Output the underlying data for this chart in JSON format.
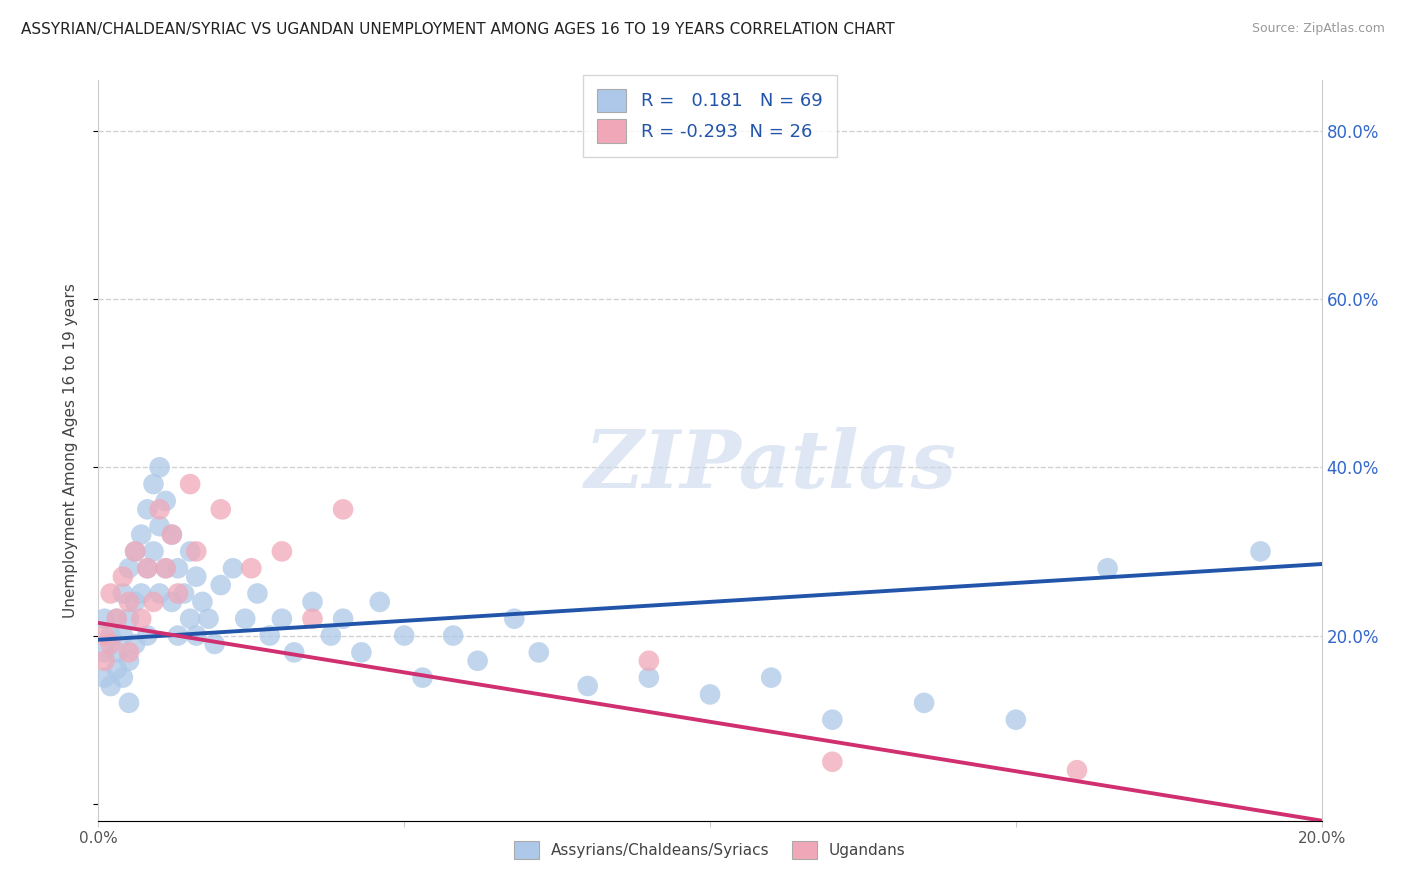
{
  "title": "ASSYRIAN/CHALDEAN/SYRIAC VS UGANDAN UNEMPLOYMENT AMONG AGES 16 TO 19 YEARS CORRELATION CHART",
  "source": "Source: ZipAtlas.com",
  "ylabel": "Unemployment Among Ages 16 to 19 years",
  "xlim": [
    0.0,
    0.2
  ],
  "ylim": [
    -0.02,
    0.86
  ],
  "xticks": [
    0.0,
    0.05,
    0.1,
    0.15,
    0.2
  ],
  "xtick_labels": [
    "0.0%",
    "",
    "",
    "",
    "20.0%"
  ],
  "ytick_positions": [
    0.0,
    0.2,
    0.4,
    0.6,
    0.8
  ],
  "legend_label_blue": "Assyrians/Chaldeans/Syriacs",
  "legend_label_pink": "Ugandans",
  "R_blue": 0.181,
  "N_blue": 69,
  "R_pink": -0.293,
  "N_pink": 26,
  "blue_color": "#adc8e8",
  "blue_line_color": "#2255aa",
  "pink_color": "#f0a8b8",
  "pink_line_color": "#d03070",
  "blue_trend_x0": 0.0,
  "blue_trend_y0": 0.195,
  "blue_trend_x1": 0.2,
  "blue_trend_y1": 0.285,
  "pink_trend_x0": 0.0,
  "pink_trend_y0": 0.215,
  "pink_trend_x1": 0.2,
  "pink_trend_y1": -0.02,
  "watermark": "ZIPatlas",
  "background_color": "#ffffff",
  "grid_color": "#cccccc",
  "right_ytick_color": "#3366cc",
  "blue_x": [
    0.001,
    0.001,
    0.001,
    0.002,
    0.002,
    0.003,
    0.003,
    0.003,
    0.004,
    0.004,
    0.004,
    0.005,
    0.005,
    0.005,
    0.005,
    0.006,
    0.006,
    0.006,
    0.007,
    0.007,
    0.008,
    0.008,
    0.008,
    0.009,
    0.009,
    0.01,
    0.01,
    0.01,
    0.011,
    0.011,
    0.012,
    0.012,
    0.013,
    0.013,
    0.014,
    0.015,
    0.015,
    0.016,
    0.016,
    0.017,
    0.018,
    0.019,
    0.02,
    0.022,
    0.024,
    0.026,
    0.028,
    0.03,
    0.032,
    0.035,
    0.038,
    0.04,
    0.043,
    0.046,
    0.05,
    0.053,
    0.058,
    0.062,
    0.068,
    0.072,
    0.08,
    0.09,
    0.1,
    0.11,
    0.12,
    0.135,
    0.15,
    0.165,
    0.19
  ],
  "blue_y": [
    0.18,
    0.22,
    0.15,
    0.2,
    0.14,
    0.18,
    0.22,
    0.16,
    0.25,
    0.2,
    0.15,
    0.28,
    0.22,
    0.17,
    0.12,
    0.3,
    0.24,
    0.19,
    0.32,
    0.25,
    0.35,
    0.28,
    0.2,
    0.38,
    0.3,
    0.4,
    0.33,
    0.25,
    0.36,
    0.28,
    0.32,
    0.24,
    0.28,
    0.2,
    0.25,
    0.3,
    0.22,
    0.27,
    0.2,
    0.24,
    0.22,
    0.19,
    0.26,
    0.28,
    0.22,
    0.25,
    0.2,
    0.22,
    0.18,
    0.24,
    0.2,
    0.22,
    0.18,
    0.24,
    0.2,
    0.15,
    0.2,
    0.17,
    0.22,
    0.18,
    0.14,
    0.15,
    0.13,
    0.15,
    0.1,
    0.12,
    0.1,
    0.28,
    0.3
  ],
  "pink_x": [
    0.001,
    0.001,
    0.002,
    0.002,
    0.003,
    0.004,
    0.005,
    0.005,
    0.006,
    0.007,
    0.008,
    0.009,
    0.01,
    0.011,
    0.012,
    0.013,
    0.015,
    0.016,
    0.02,
    0.025,
    0.03,
    0.035,
    0.04,
    0.09,
    0.12,
    0.16
  ],
  "pink_y": [
    0.2,
    0.17,
    0.25,
    0.19,
    0.22,
    0.27,
    0.24,
    0.18,
    0.3,
    0.22,
    0.28,
    0.24,
    0.35,
    0.28,
    0.32,
    0.25,
    0.38,
    0.3,
    0.35,
    0.28,
    0.3,
    0.22,
    0.35,
    0.17,
    0.05,
    0.04
  ]
}
